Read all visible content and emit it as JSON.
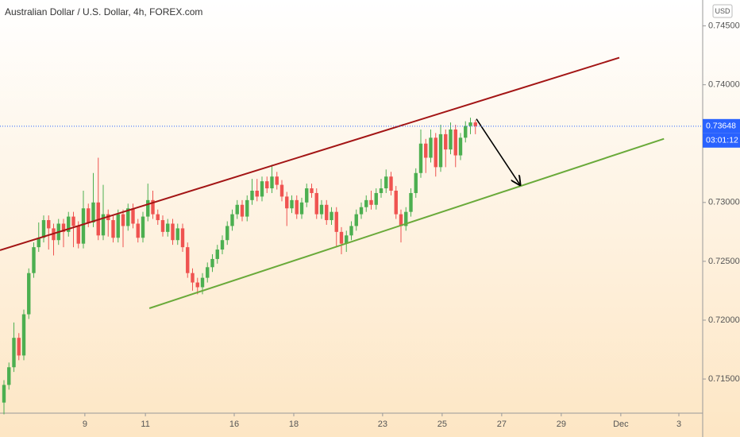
{
  "chart_data": {
    "type": "candlestick",
    "title": "Australian Dollar / U.S. Dollar, 4h, FOREX.com",
    "currency": "USD",
    "x": [
      0,
      1,
      2,
      3,
      4,
      5,
      6,
      7,
      8,
      9,
      10,
      11,
      12,
      13,
      14,
      15,
      16,
      17,
      18,
      19,
      20,
      21,
      22,
      23,
      24,
      25,
      26,
      27,
      28,
      29,
      30,
      31,
      32,
      33,
      34,
      35,
      36,
      37,
      38,
      39,
      40,
      41,
      42,
      43,
      44,
      45,
      46,
      47,
      48,
      49,
      50,
      51,
      52,
      53,
      54,
      55,
      56,
      57,
      58,
      59,
      60,
      61,
      62,
      63,
      64,
      65,
      66,
      67,
      68,
      69,
      70,
      71,
      72,
      73,
      74,
      75,
      76,
      77,
      78,
      79,
      80,
      81,
      82,
      83,
      84,
      85,
      86,
      87,
      88,
      89,
      90,
      91,
      92,
      93,
      94,
      95
    ],
    "open": [
      0.713,
      0.7145,
      0.716,
      0.7185,
      0.717,
      0.7205,
      0.724,
      0.7262,
      0.727,
      0.7285,
      0.7278,
      0.7268,
      0.7282,
      0.7275,
      0.7288,
      0.728,
      0.7265,
      0.7295,
      0.7283,
      0.73,
      0.7272,
      0.729,
      0.7285,
      0.727,
      0.729,
      0.728,
      0.7295,
      0.7282,
      0.727,
      0.7288,
      0.7302,
      0.729,
      0.7285,
      0.7275,
      0.7282,
      0.7268,
      0.7278,
      0.7262,
      0.724,
      0.7232,
      0.7228,
      0.7236,
      0.7245,
      0.7252,
      0.726,
      0.7268,
      0.728,
      0.729,
      0.7298,
      0.7288,
      0.7302,
      0.731,
      0.7305,
      0.7318,
      0.7312,
      0.7322,
      0.7315,
      0.7305,
      0.7295,
      0.7302,
      0.729,
      0.73,
      0.7312,
      0.7308,
      0.729,
      0.7298,
      0.7285,
      0.7292,
      0.7275,
      0.7265,
      0.7272,
      0.728,
      0.729,
      0.7296,
      0.7302,
      0.7298,
      0.7308,
      0.7312,
      0.7322,
      0.731,
      0.729,
      0.728,
      0.7292,
      0.7308,
      0.7325,
      0.735,
      0.7338,
      0.7355,
      0.733,
      0.7358,
      0.7345,
      0.7362,
      0.734,
      0.7355,
      0.7365,
      0.7368
    ],
    "high": [
      0.7149,
      0.7164,
      0.7198,
      0.7189,
      0.7209,
      0.7244,
      0.7266,
      0.7283,
      0.7289,
      0.7289,
      0.7282,
      0.7286,
      0.7286,
      0.7292,
      0.7292,
      0.7284,
      0.731,
      0.7299,
      0.7325,
      0.7338,
      0.7315,
      0.7294,
      0.7289,
      0.7294,
      0.7294,
      0.7299,
      0.7299,
      0.7286,
      0.7292,
      0.7316,
      0.731,
      0.7294,
      0.7289,
      0.7286,
      0.7286,
      0.7282,
      0.7282,
      0.7266,
      0.7244,
      0.7236,
      0.724,
      0.7249,
      0.7256,
      0.7264,
      0.7272,
      0.7284,
      0.7294,
      0.7302,
      0.7302,
      0.7306,
      0.732,
      0.732,
      0.7322,
      0.7322,
      0.7332,
      0.7326,
      0.7319,
      0.7309,
      0.7306,
      0.7306,
      0.7304,
      0.7316,
      0.7316,
      0.7312,
      0.7302,
      0.7302,
      0.7296,
      0.7296,
      0.7279,
      0.7276,
      0.7284,
      0.7294,
      0.73,
      0.7306,
      0.731,
      0.7312,
      0.732,
      0.7328,
      0.7326,
      0.7314,
      0.7294,
      0.7296,
      0.7312,
      0.7329,
      0.7362,
      0.7354,
      0.7362,
      0.7359,
      0.7366,
      0.7362,
      0.7368,
      0.7366,
      0.7359,
      0.7369,
      0.7372,
      0.737
    ],
    "low": [
      0.712,
      0.7141,
      0.7156,
      0.7166,
      0.7166,
      0.7201,
      0.7236,
      0.7258,
      0.7266,
      0.726,
      0.7255,
      0.7264,
      0.7262,
      0.7271,
      0.7262,
      0.7261,
      0.7261,
      0.7279,
      0.7279,
      0.7268,
      0.7268,
      0.7271,
      0.7266,
      0.7266,
      0.7262,
      0.7276,
      0.7278,
      0.7266,
      0.7266,
      0.7284,
      0.7286,
      0.7281,
      0.7271,
      0.7271,
      0.7264,
      0.7264,
      0.7258,
      0.7236,
      0.7225,
      0.7222,
      0.7222,
      0.7232,
      0.7241,
      0.7248,
      0.7256,
      0.7264,
      0.7276,
      0.7286,
      0.7284,
      0.7284,
      0.7298,
      0.7301,
      0.7301,
      0.7308,
      0.7308,
      0.7311,
      0.7301,
      0.728,
      0.7291,
      0.7286,
      0.7286,
      0.7296,
      0.7304,
      0.7286,
      0.7286,
      0.7281,
      0.7281,
      0.7262,
      0.7256,
      0.7258,
      0.7268,
      0.7276,
      0.7286,
      0.7292,
      0.7294,
      0.7294,
      0.7304,
      0.7308,
      0.7306,
      0.7286,
      0.7266,
      0.7276,
      0.7288,
      0.7304,
      0.7321,
      0.7325,
      0.7334,
      0.7322,
      0.7326,
      0.733,
      0.7341,
      0.733,
      0.7336,
      0.7351,
      0.7358,
      0.7358
    ],
    "close": [
      0.7145,
      0.716,
      0.7185,
      0.717,
      0.7205,
      0.724,
      0.7262,
      0.727,
      0.7285,
      0.7278,
      0.7268,
      0.7282,
      0.7275,
      0.7288,
      0.728,
      0.7265,
      0.7295,
      0.7283,
      0.73,
      0.7272,
      0.729,
      0.7285,
      0.727,
      0.729,
      0.728,
      0.7295,
      0.7282,
      0.727,
      0.7288,
      0.7302,
      0.729,
      0.7285,
      0.7275,
      0.7282,
      0.7268,
      0.7278,
      0.7262,
      0.724,
      0.7232,
      0.7228,
      0.7236,
      0.7245,
      0.7252,
      0.726,
      0.7268,
      0.728,
      0.729,
      0.7298,
      0.7288,
      0.7302,
      0.731,
      0.7305,
      0.7318,
      0.7312,
      0.7322,
      0.7315,
      0.7305,
      0.7295,
      0.7302,
      0.729,
      0.73,
      0.7312,
      0.7308,
      0.729,
      0.7298,
      0.7285,
      0.7292,
      0.7275,
      0.7265,
      0.7272,
      0.728,
      0.729,
      0.7296,
      0.7302,
      0.7298,
      0.7308,
      0.7312,
      0.7322,
      0.731,
      0.729,
      0.728,
      0.7292,
      0.7308,
      0.7325,
      0.735,
      0.7338,
      0.7355,
      0.733,
      0.7358,
      0.7345,
      0.7362,
      0.734,
      0.7355,
      0.7365,
      0.7368,
      0.73648
    ],
    "up_color": "#4caf50",
    "down_color": "#ef5350",
    "xlim": [
      -0.8,
      140.8
    ],
    "ylim": [
      0.7121,
      0.7472
    ],
    "xticks": [
      {
        "value": 16.3,
        "label": "9"
      },
      {
        "value": 28.5,
        "label": "11"
      },
      {
        "value": 46.4,
        "label": "16"
      },
      {
        "value": 58.4,
        "label": "18"
      },
      {
        "value": 76.3,
        "label": "23"
      },
      {
        "value": 88.3,
        "label": "25"
      },
      {
        "value": 100.3,
        "label": "27"
      },
      {
        "value": 112.3,
        "label": "29"
      },
      {
        "value": 124.3,
        "label": "Dec"
      },
      {
        "value": 136.0,
        "label": "3"
      }
    ],
    "yticks": [
      {
        "value": 0.715,
        "label": "0.71500"
      },
      {
        "value": 0.72,
        "label": "0.72000"
      },
      {
        "value": 0.725,
        "label": "0.72500"
      },
      {
        "value": 0.73,
        "label": "0.73000"
      },
      {
        "value": 0.74,
        "label": "0.74000"
      },
      {
        "value": 0.745,
        "label": "0.74500"
      }
    ],
    "last_price": 0.73648,
    "countdown": "03:01:12",
    "lines": [
      {
        "x": [
          -0.8,
          124
        ],
        "y": [
          0.72594,
          0.7423
        ],
        "color": "#a31515"
      },
      {
        "x": [
          29.3,
          133
        ],
        "y": [
          0.72101,
          0.73541
        ],
        "color": "#6aaa3a"
      },
      {
        "x": [
          95.2,
          104
        ],
        "y": [
          0.7371,
          0.73149
        ],
        "color": "#000000",
        "arrow": true
      }
    ]
  }
}
